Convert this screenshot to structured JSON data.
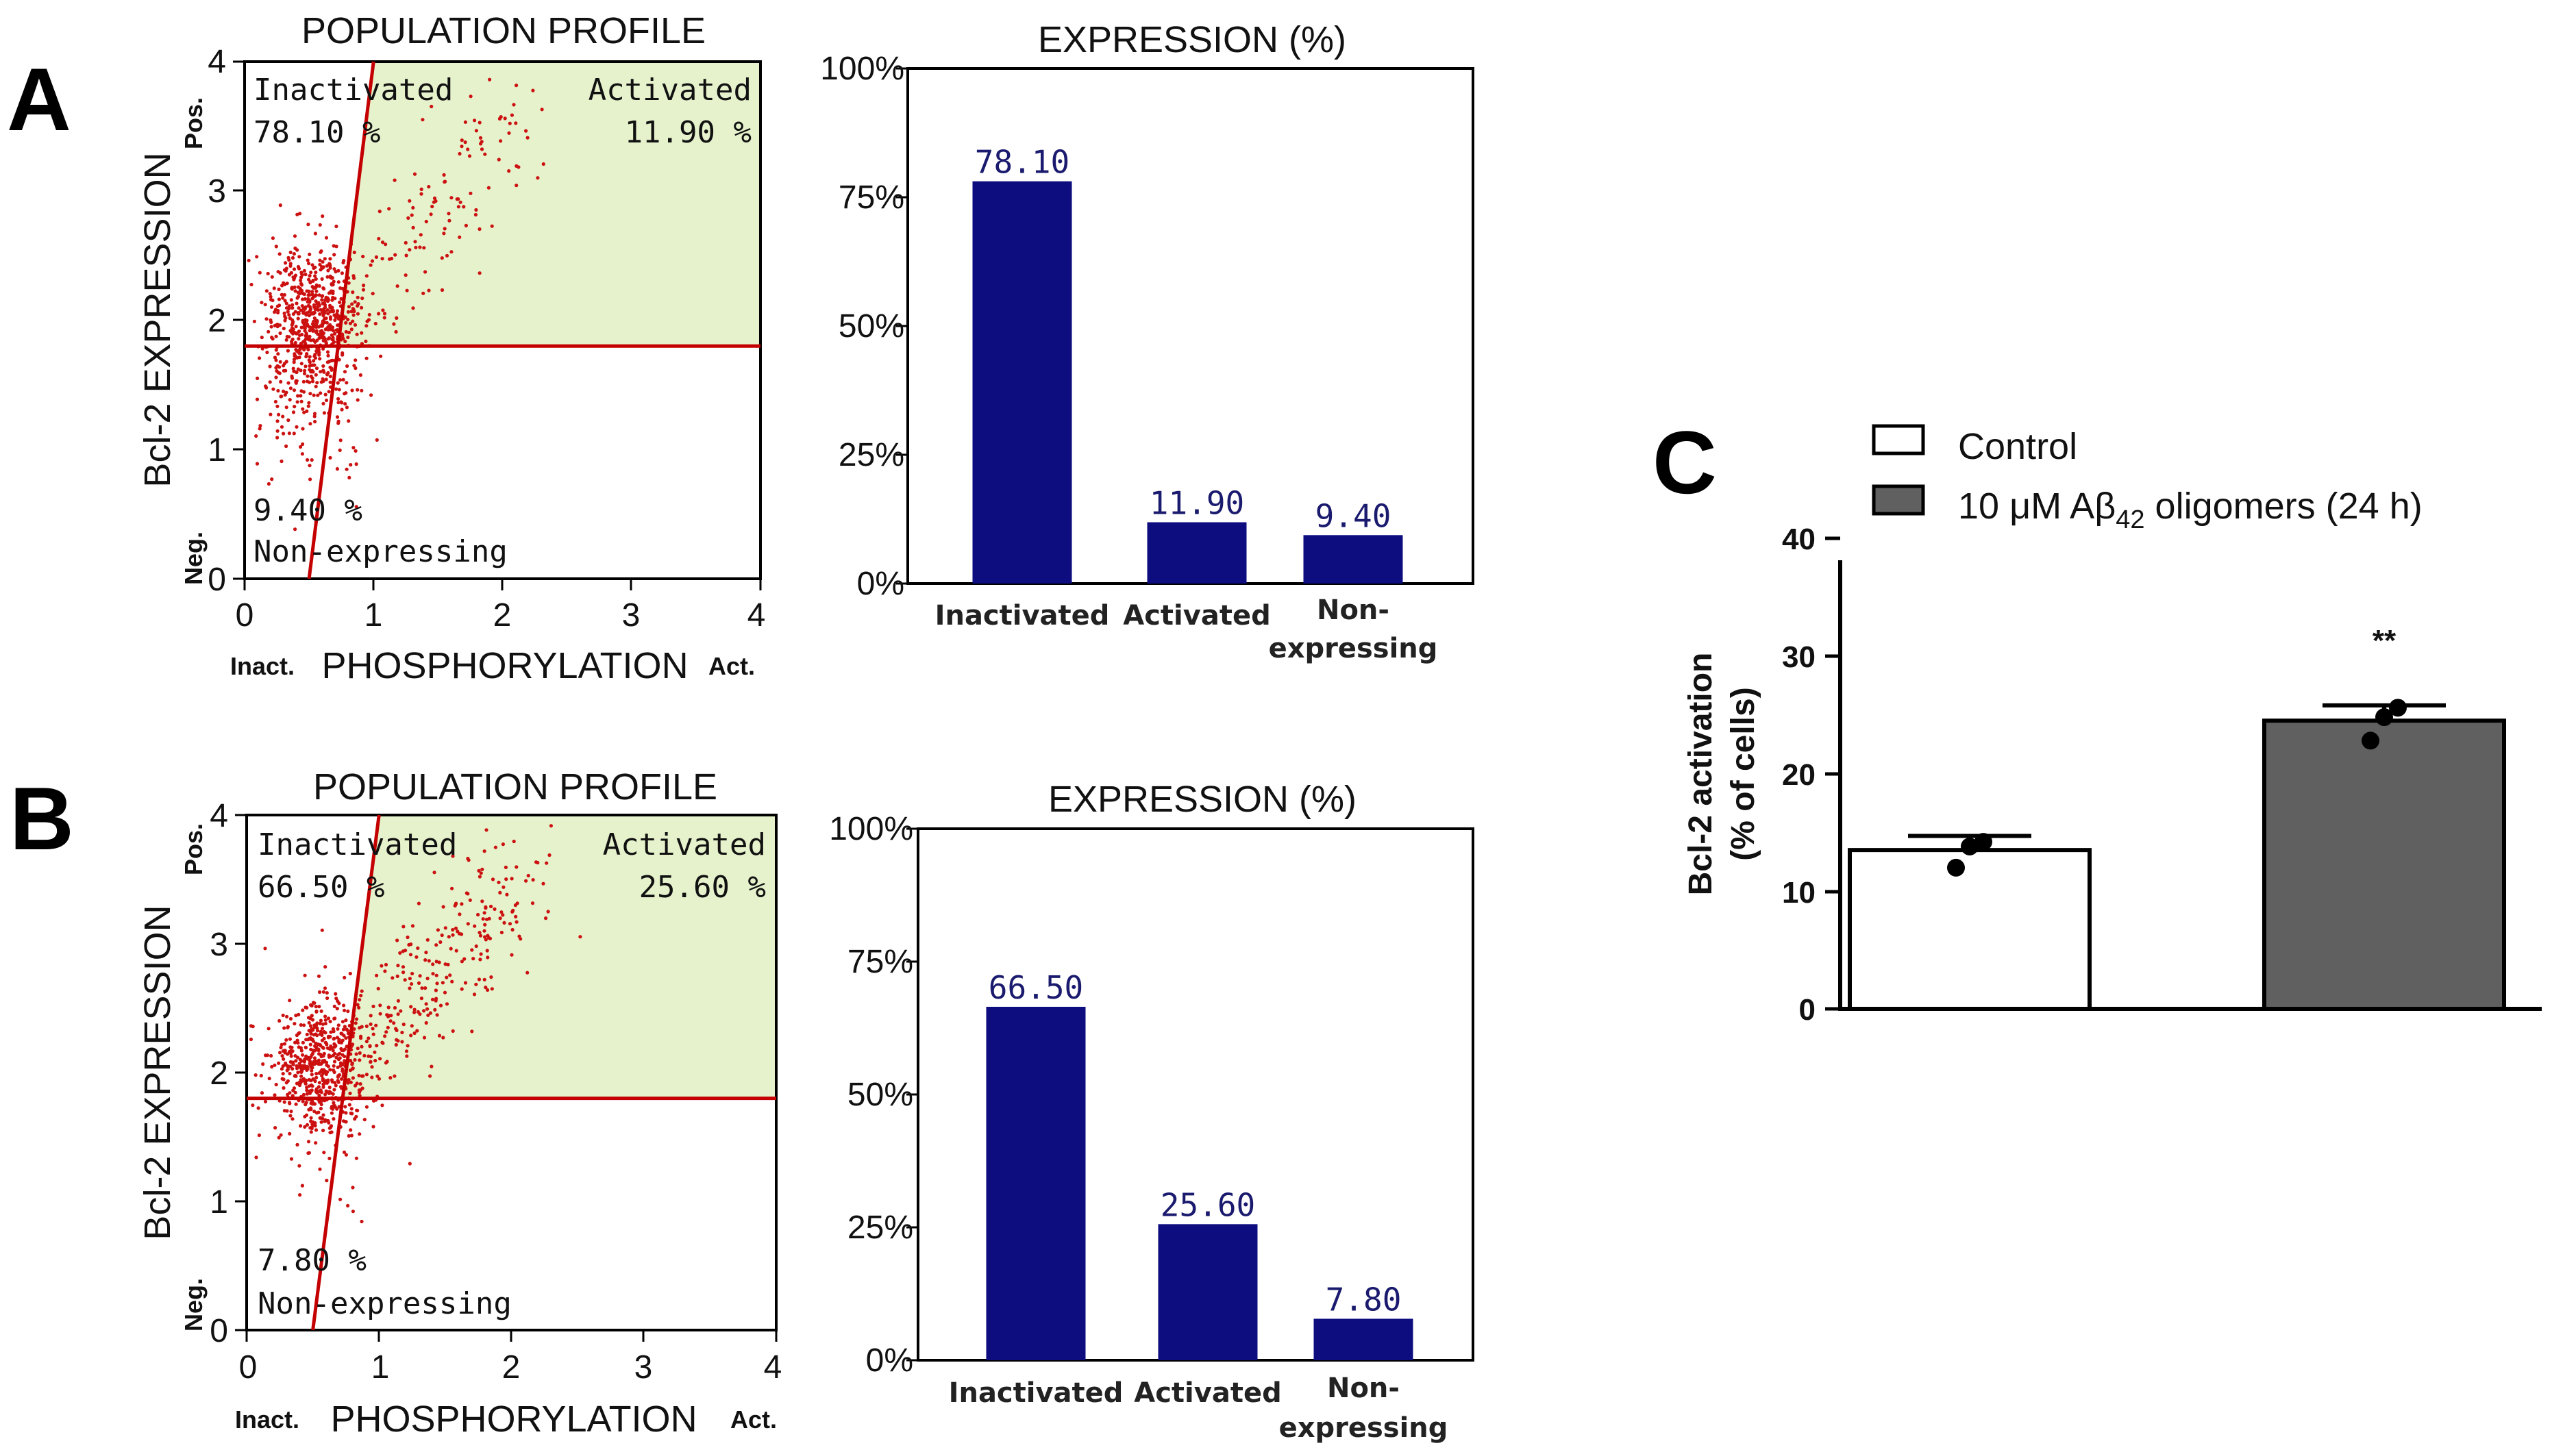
{
  "panels": {
    "A": {
      "letter": "A",
      "scatter": {
        "title": "POPULATION PROFILE",
        "ylabel": "Bcl-2 EXPRESSION",
        "xlabel": "PHOSPHORYLATION",
        "x_ticks": [
          "0",
          "1",
          "2",
          "3",
          "4"
        ],
        "y_ticks": [
          "0",
          "1",
          "2",
          "3",
          "4"
        ],
        "x_low_label": "Inact.",
        "x_high_label": "Act.",
        "y_low_label": "Neg.",
        "y_high_label": "Pos.",
        "q_inactivated_name": "Inactivated",
        "q_inactivated_value": "78.10 %",
        "q_activated_name": "Activated",
        "q_activated_value": "11.90 %",
        "q_nonexp_value": "9.40 %",
        "q_nonexp_name": "Non-expressing",
        "threshold_y": 1.8
      },
      "bar": {
        "title": "EXPRESSION (%)",
        "y_ticks": [
          "0%",
          "25%",
          "50%",
          "75%",
          "100%"
        ],
        "cat_inactivated": "Inactivated",
        "cat_activated": "Activated",
        "cat_non_1": "Non-",
        "cat_non_2": "expressing",
        "label_inactivated": "78.10",
        "label_activated": "11.90",
        "label_nonexp": "9.40"
      }
    },
    "B": {
      "letter": "B",
      "scatter": {
        "title": "POPULATION PROFILE",
        "ylabel": "Bcl-2 EXPRESSION",
        "xlabel": "PHOSPHORYLATION",
        "x_ticks": [
          "0",
          "1",
          "2",
          "3",
          "4"
        ],
        "y_ticks": [
          "0",
          "1",
          "2",
          "3",
          "4"
        ],
        "x_low_label": "Inact.",
        "x_high_label": "Act.",
        "y_low_label": "Neg.",
        "y_high_label": "Pos.",
        "q_inactivated_name": "Inactivated",
        "q_inactivated_value": "66.50 %",
        "q_activated_name": "Activated",
        "q_activated_value": "25.60 %",
        "q_nonexp_value": "7.80 %",
        "q_nonexp_name": "Non-expressing",
        "threshold_y": 1.8
      },
      "bar": {
        "title": "EXPRESSION (%)",
        "y_ticks": [
          "0%",
          "25%",
          "50%",
          "75%",
          "100%"
        ],
        "cat_inactivated": "Inactivated",
        "cat_activated": "Activated",
        "cat_non_1": "Non-",
        "cat_non_2": "expressing",
        "label_inactivated": "66.50",
        "label_activated": "25.60",
        "label_nonexp": "7.80"
      }
    },
    "C": {
      "letter": "C",
      "legend_control": "Control",
      "legend_treated_prefix": "10 μM Aβ",
      "legend_treated_sub": "42",
      "legend_treated_suffix": " oligomers (24 h)",
      "ylabel_1": "Bcl-2 activation",
      "ylabel_2": "(% of cells)",
      "y_ticks": [
        "0",
        "10",
        "20",
        "30",
        "40"
      ],
      "significance": "**"
    }
  },
  "chart_data": [
    {
      "type": "bar",
      "panel": "A",
      "title": "EXPRESSION (%)",
      "categories": [
        "Inactivated",
        "Activated",
        "Non-expressing"
      ],
      "values": [
        78.1,
        11.9,
        9.4
      ],
      "ylabel": "",
      "ylim": [
        0,
        100
      ],
      "bar_color": "#0d0d80"
    },
    {
      "type": "bar",
      "panel": "B",
      "title": "EXPRESSION (%)",
      "categories": [
        "Inactivated",
        "Activated",
        "Non-expressing"
      ],
      "values": [
        66.5,
        25.6,
        7.8
      ],
      "ylabel": "",
      "ylim": [
        0,
        100
      ],
      "bar_color": "#0d0d80"
    },
    {
      "type": "bar",
      "panel": "C",
      "categories": [
        "Control",
        "10 μM Aβ42 oligomers (24 h)"
      ],
      "values": [
        13.5,
        24.5
      ],
      "errors": [
        1.2,
        1.3
      ],
      "points": [
        [
          12.0,
          13.8,
          14.2
        ],
        [
          22.8,
          24.8,
          25.6
        ]
      ],
      "colors": [
        "#ffffff",
        "#606060"
      ],
      "ylabel": "Bcl-2 activation (% of cells)",
      "ylim": [
        0,
        40
      ]
    },
    {
      "type": "scatter",
      "panel": "A",
      "title": "POPULATION PROFILE",
      "xlabel": "PHOSPHORYLATION",
      "ylabel": "Bcl-2 EXPRESSION",
      "xlim": [
        0,
        4
      ],
      "ylim": [
        0,
        4
      ],
      "horizontal_threshold": 1.8,
      "diagonal_threshold": [
        [
          0.5,
          0
        ],
        [
          1.0,
          4
        ]
      ],
      "quadrant_percentages": {
        "Inactivated": 78.1,
        "Activated": 11.9,
        "Non-expressing": 9.4
      },
      "point_color": "#cc1111",
      "region_color": "#e6f2cc"
    },
    {
      "type": "scatter",
      "panel": "B",
      "title": "POPULATION PROFILE",
      "xlabel": "PHOSPHORYLATION",
      "ylabel": "Bcl-2 EXPRESSION",
      "xlim": [
        0,
        4
      ],
      "ylim": [
        0,
        4
      ],
      "horizontal_threshold": 1.8,
      "diagonal_threshold": [
        [
          0.5,
          0
        ],
        [
          1.0,
          4
        ]
      ],
      "quadrant_percentages": {
        "Inactivated": 66.5,
        "Activated": 25.6,
        "Non-expressing": 7.8
      },
      "point_color": "#cc1111",
      "region_color": "#e6f2cc"
    }
  ]
}
